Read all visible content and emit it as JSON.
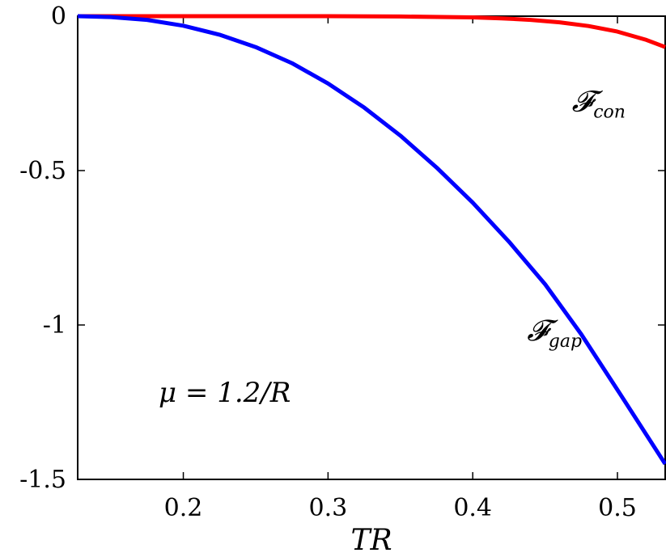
{
  "chart_data": {
    "type": "line",
    "xlabel": "TR",
    "ylabel": "",
    "xlim": [
      0.127,
      0.533
    ],
    "ylim": [
      -1.5,
      0
    ],
    "xticks": [
      0.2,
      0.3,
      0.4,
      0.5
    ],
    "xtick_labels": [
      "0.2",
      "0.3",
      "0.4",
      "0.5"
    ],
    "yticks": [
      0,
      -0.5,
      -1,
      -1.5
    ],
    "ytick_labels": [
      "0",
      "-0.5",
      "-1",
      "-1.5"
    ],
    "grid": false,
    "annotation": "μ = 1.2/R",
    "series": [
      {
        "name": "𝓕con",
        "label_main": "𝓕",
        "label_sub": "con",
        "color": "#ff0000",
        "x": [
          0.127,
          0.15,
          0.2,
          0.25,
          0.3,
          0.35,
          0.4,
          0.42,
          0.44,
          0.46,
          0.48,
          0.5,
          0.52,
          0.533
        ],
        "y": [
          0,
          0,
          0,
          0,
          0,
          -0.001,
          -0.004,
          -0.007,
          -0.012,
          -0.02,
          -0.032,
          -0.05,
          -0.077,
          -0.1
        ]
      },
      {
        "name": "𝓕gap",
        "label_main": "𝓕",
        "label_sub": "gap",
        "color": "#0000ff",
        "x": [
          0.127,
          0.15,
          0.175,
          0.2,
          0.225,
          0.25,
          0.275,
          0.3,
          0.325,
          0.35,
          0.375,
          0.4,
          0.425,
          0.45,
          0.475,
          0.5,
          0.533
        ],
        "y": [
          0,
          -0.003,
          -0.012,
          -0.031,
          -0.06,
          -0.1,
          -0.152,
          -0.218,
          -0.296,
          -0.387,
          -0.49,
          -0.604,
          -0.73,
          -0.868,
          -1.03,
          -1.21,
          -1.45
        ]
      }
    ]
  }
}
